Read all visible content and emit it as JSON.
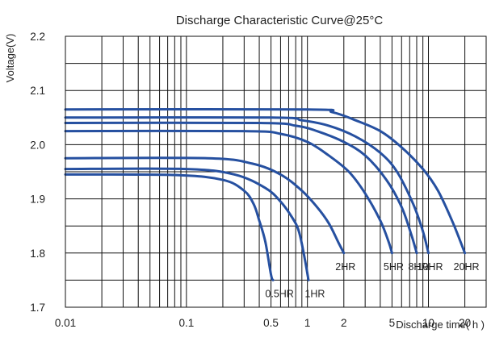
{
  "chart_data": {
    "type": "line",
    "title": "Discharge Characteristic Curve@25°C",
    "xlabel": "Discharge time( h )",
    "ylabel": "Voltage(V)",
    "x_scale": "log",
    "xlim": [
      0.01,
      30
    ],
    "ylim": [
      1.7,
      2.2
    ],
    "x_ticks": [
      0.01,
      0.1,
      0.5,
      1,
      2,
      5,
      10,
      20
    ],
    "x_tick_labels": [
      "0.01",
      "0.1",
      "0.5",
      "1",
      "2",
      "5",
      "10",
      "20"
    ],
    "y_ticks": [
      1.7,
      1.8,
      1.9,
      2.0,
      2.1,
      2.2
    ],
    "y_tick_labels": [
      "1.7",
      "1.8",
      "1.9",
      "2.0",
      "2.1",
      "2.2"
    ],
    "grid": true,
    "legend": "none",
    "color": "#2650a0",
    "series": [
      {
        "name": "0.5HR",
        "x": [
          0.01,
          0.08,
          0.2,
          0.3,
          0.36,
          0.4,
          0.45,
          0.5,
          0.52
        ],
        "y": [
          1.945,
          1.944,
          1.935,
          1.915,
          1.89,
          1.86,
          1.82,
          1.76,
          1.75
        ]
      },
      {
        "name": "1HR",
        "x": [
          0.01,
          0.1,
          0.25,
          0.45,
          0.6,
          0.75,
          0.85,
          0.95,
          1.02
        ],
        "y": [
          1.955,
          1.955,
          1.945,
          1.92,
          1.895,
          1.865,
          1.84,
          1.79,
          1.75
        ]
      },
      {
        "name": "2HR",
        "x": [
          0.01,
          0.15,
          0.35,
          0.6,
          0.9,
          1.2,
          1.5,
          1.8,
          2.0
        ],
        "y": [
          1.975,
          1.975,
          1.965,
          1.945,
          1.915,
          1.885,
          1.855,
          1.82,
          1.8
        ]
      },
      {
        "name": "5HR",
        "x": [
          0.01,
          0.3,
          0.6,
          1.0,
          1.5,
          2.2,
          3.0,
          4.0,
          4.7,
          5.0
        ],
        "y": [
          2.025,
          2.025,
          2.02,
          2.005,
          1.98,
          1.95,
          1.91,
          1.86,
          1.82,
          1.8
        ]
      },
      {
        "name": "8HR",
        "x": [
          0.01,
          0.4,
          0.8,
          1.2,
          2.0,
          3.0,
          4.5,
          6.0,
          7.2,
          8.0
        ],
        "y": [
          2.04,
          2.04,
          2.035,
          2.025,
          2.005,
          1.98,
          1.935,
          1.885,
          1.835,
          1.8
        ]
      },
      {
        "name": "10HR",
        "x": [
          0.01,
          0.5,
          0.9,
          1.5,
          2.5,
          4.0,
          5.5,
          7.5,
          9.0,
          10.0
        ],
        "y": [
          2.05,
          2.05,
          2.045,
          2.035,
          2.015,
          1.985,
          1.95,
          1.89,
          1.84,
          1.8
        ]
      },
      {
        "name": "20HR",
        "x": [
          0.01,
          1.0,
          1.6,
          2.5,
          4.0,
          6.0,
          9.0,
          12.0,
          16.0,
          20.0
        ],
        "y": [
          2.065,
          2.065,
          2.06,
          2.045,
          2.025,
          1.995,
          1.955,
          1.915,
          1.855,
          1.8
        ]
      }
    ]
  }
}
